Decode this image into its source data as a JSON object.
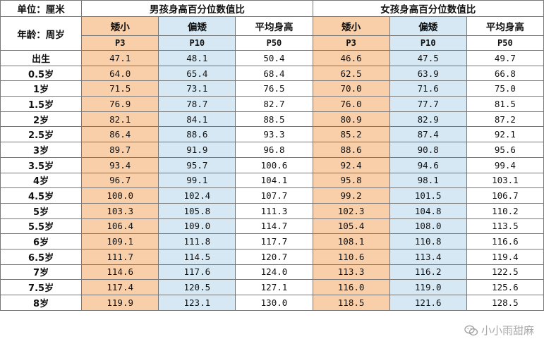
{
  "header": {
    "unit_label": "单位：厘米",
    "age_label": "年龄：周岁",
    "boys_title": "男孩身高百分位数值比",
    "girls_title": "女孩身高百分位数值比",
    "boys_columns": [
      {
        "label": "矮小",
        "code": "P3"
      },
      {
        "label": "偏矮",
        "code": "P10"
      },
      {
        "label": "平均身高",
        "code": "P50"
      }
    ],
    "girls_columns": [
      {
        "label": "矮小",
        "code": "P3"
      },
      {
        "label": "偏矮",
        "code": "P10"
      },
      {
        "label": "平均身高",
        "code": "P50"
      }
    ]
  },
  "rows": [
    {
      "age": "出生",
      "boys": [
        "47.1",
        "48.1",
        "50.4"
      ],
      "girls": [
        "46.6",
        "47.5",
        "49.7"
      ]
    },
    {
      "age": "0.5岁",
      "boys": [
        "64.0",
        "65.4",
        "68.4"
      ],
      "girls": [
        "62.5",
        "63.9",
        "66.8"
      ]
    },
    {
      "age": "1岁",
      "boys": [
        "71.5",
        "73.1",
        "76.5"
      ],
      "girls": [
        "70.0",
        "71.6",
        "75.0"
      ]
    },
    {
      "age": "1.5岁",
      "boys": [
        "76.9",
        "78.7",
        "82.7"
      ],
      "girls": [
        "76.0",
        "77.7",
        "81.5"
      ]
    },
    {
      "age": "2岁",
      "boys": [
        "82.1",
        "84.1",
        "88.5"
      ],
      "girls": [
        "80.9",
        "82.9",
        "87.2"
      ]
    },
    {
      "age": "2.5岁",
      "boys": [
        "86.4",
        "88.6",
        "93.3"
      ],
      "girls": [
        "85.2",
        "87.4",
        "92.1"
      ]
    },
    {
      "age": "3岁",
      "boys": [
        "89.7",
        "91.9",
        "96.8"
      ],
      "girls": [
        "88.6",
        "90.8",
        "95.6"
      ]
    },
    {
      "age": "3.5岁",
      "boys": [
        "93.4",
        "95.7",
        "100.6"
      ],
      "girls": [
        "92.4",
        "94.6",
        "99.4"
      ]
    },
    {
      "age": "4岁",
      "boys": [
        "96.7",
        "99.1",
        "104.1"
      ],
      "girls": [
        "95.8",
        "98.1",
        "103.1"
      ]
    },
    {
      "age": "4.5岁",
      "boys": [
        "100.0",
        "102.4",
        "107.7"
      ],
      "girls": [
        "99.2",
        "101.5",
        "106.7"
      ]
    },
    {
      "age": "5岁",
      "boys": [
        "103.3",
        "105.8",
        "111.3"
      ],
      "girls": [
        "102.3",
        "104.8",
        "110.2"
      ]
    },
    {
      "age": "5.5岁",
      "boys": [
        "106.4",
        "109.0",
        "114.7"
      ],
      "girls": [
        "105.4",
        "108.0",
        "113.5"
      ]
    },
    {
      "age": "6岁",
      "boys": [
        "109.1",
        "111.8",
        "117.7"
      ],
      "girls": [
        "108.1",
        "110.8",
        "116.6"
      ]
    },
    {
      "age": "6.5岁",
      "boys": [
        "111.7",
        "114.5",
        "120.7"
      ],
      "girls": [
        "110.6",
        "113.4",
        "119.4"
      ]
    },
    {
      "age": "7岁",
      "boys": [
        "114.6",
        "117.6",
        "124.0"
      ],
      "girls": [
        "113.3",
        "116.2",
        "122.5"
      ]
    },
    {
      "age": "7.5岁",
      "boys": [
        "117.4",
        "120.5",
        "127.1"
      ],
      "girls": [
        "116.0",
        "119.0",
        "125.6"
      ]
    },
    {
      "age": "8岁",
      "boys": [
        "119.9",
        "123.1",
        "130.0"
      ],
      "girls": [
        "118.5",
        "121.6",
        "128.5"
      ]
    }
  ],
  "colors": {
    "short": "#f9cfaa",
    "below_average": "#d5e8f4",
    "average": "#ffffff"
  },
  "watermark": {
    "text": "小小雨甜麻",
    "icon": "wechat-icon"
  }
}
